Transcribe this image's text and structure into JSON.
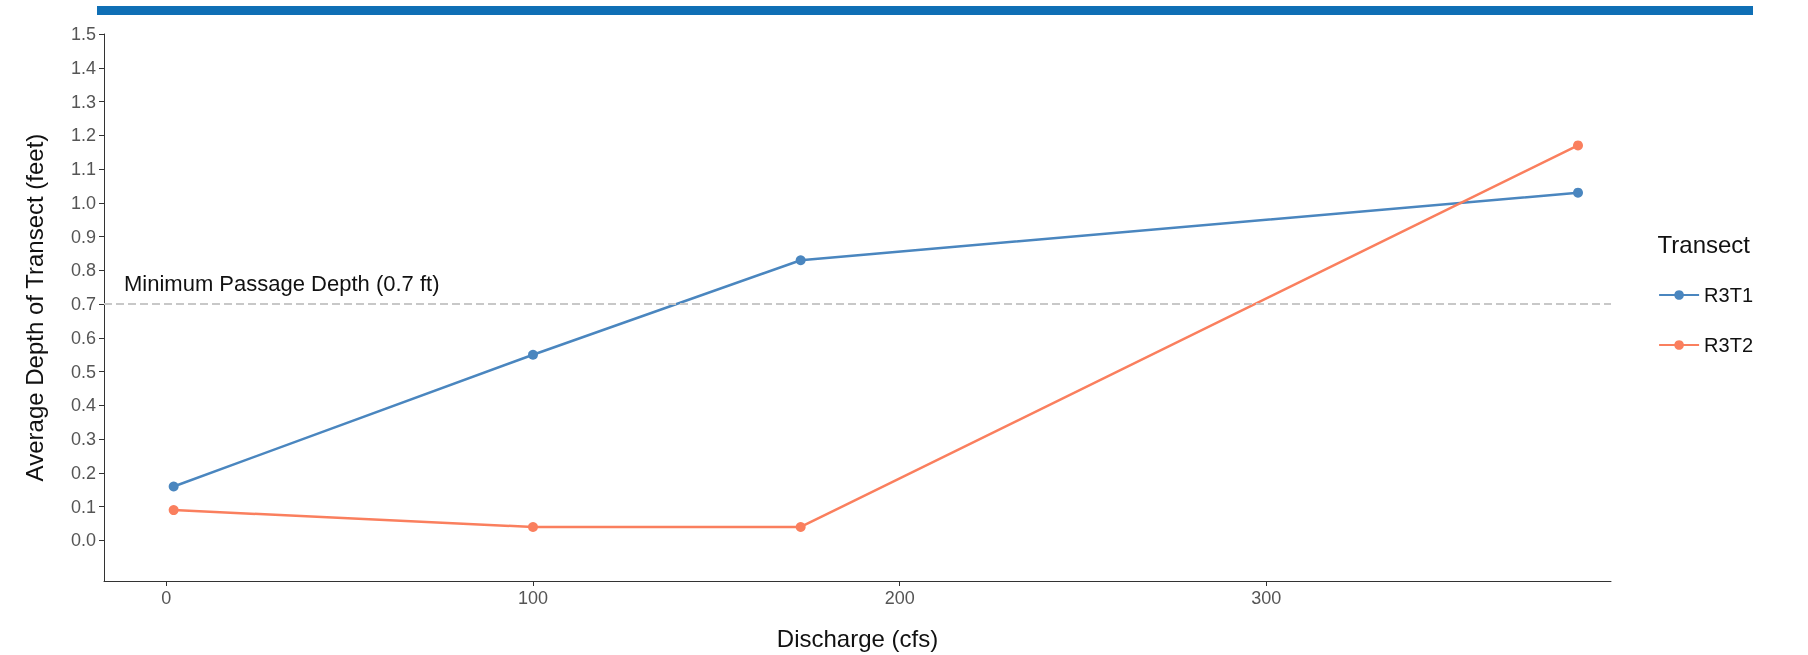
{
  "chart_data": {
    "type": "line",
    "xlabel": "Discharge (cfs)",
    "ylabel": "Average Depth of Transect (feet)",
    "legend_title": "Transect",
    "series": [
      {
        "name": "R3T1",
        "color": "#4a86bf",
        "x": [
          2,
          100,
          173,
          385
        ],
        "values": [
          0.16,
          0.55,
          0.83,
          1.03
        ]
      },
      {
        "name": "R3T2",
        "color": "#fa7f5e",
        "x": [
          2,
          100,
          173,
          385
        ],
        "values": [
          0.09,
          0.04,
          0.04,
          1.17
        ]
      }
    ],
    "xlim": [
      -17,
      394
    ],
    "xticks": [
      0,
      100,
      200,
      300
    ],
    "ylim": [
      -0.12,
      1.5
    ],
    "yticks": [
      {
        "value": 0,
        "label": "0.0"
      },
      {
        "value": 0.1,
        "label": "0.1"
      },
      {
        "value": 0.2,
        "label": "0.2"
      },
      {
        "value": 0.3,
        "label": "0.3"
      },
      {
        "value": 0.4,
        "label": "0.4"
      },
      {
        "value": 0.5,
        "label": "0.5"
      },
      {
        "value": 0.6,
        "label": "0.6"
      },
      {
        "value": 0.7,
        "label": "0.7"
      },
      {
        "value": 0.8,
        "label": "0.8"
      },
      {
        "value": 0.9,
        "label": "0.9"
      },
      {
        "value": 1,
        "label": "1.0"
      },
      {
        "value": 1.1,
        "label": "1.1"
      },
      {
        "value": 1.2,
        "label": "1.2"
      },
      {
        "value": 1.3,
        "label": "1.3"
      },
      {
        "value": 1.4,
        "label": "1.4"
      },
      {
        "value": 1.5,
        "label": "1.5"
      }
    ],
    "ref_lines": [
      {
        "axis": "y",
        "value": 0.7,
        "label": "Minimum Passage Depth (0.7 ft)",
        "color": "#c8c8c8",
        "line_style": "dashed"
      }
    ],
    "grid": false,
    "legend": "right",
    "marker": "circle",
    "line_style": "solid"
  }
}
